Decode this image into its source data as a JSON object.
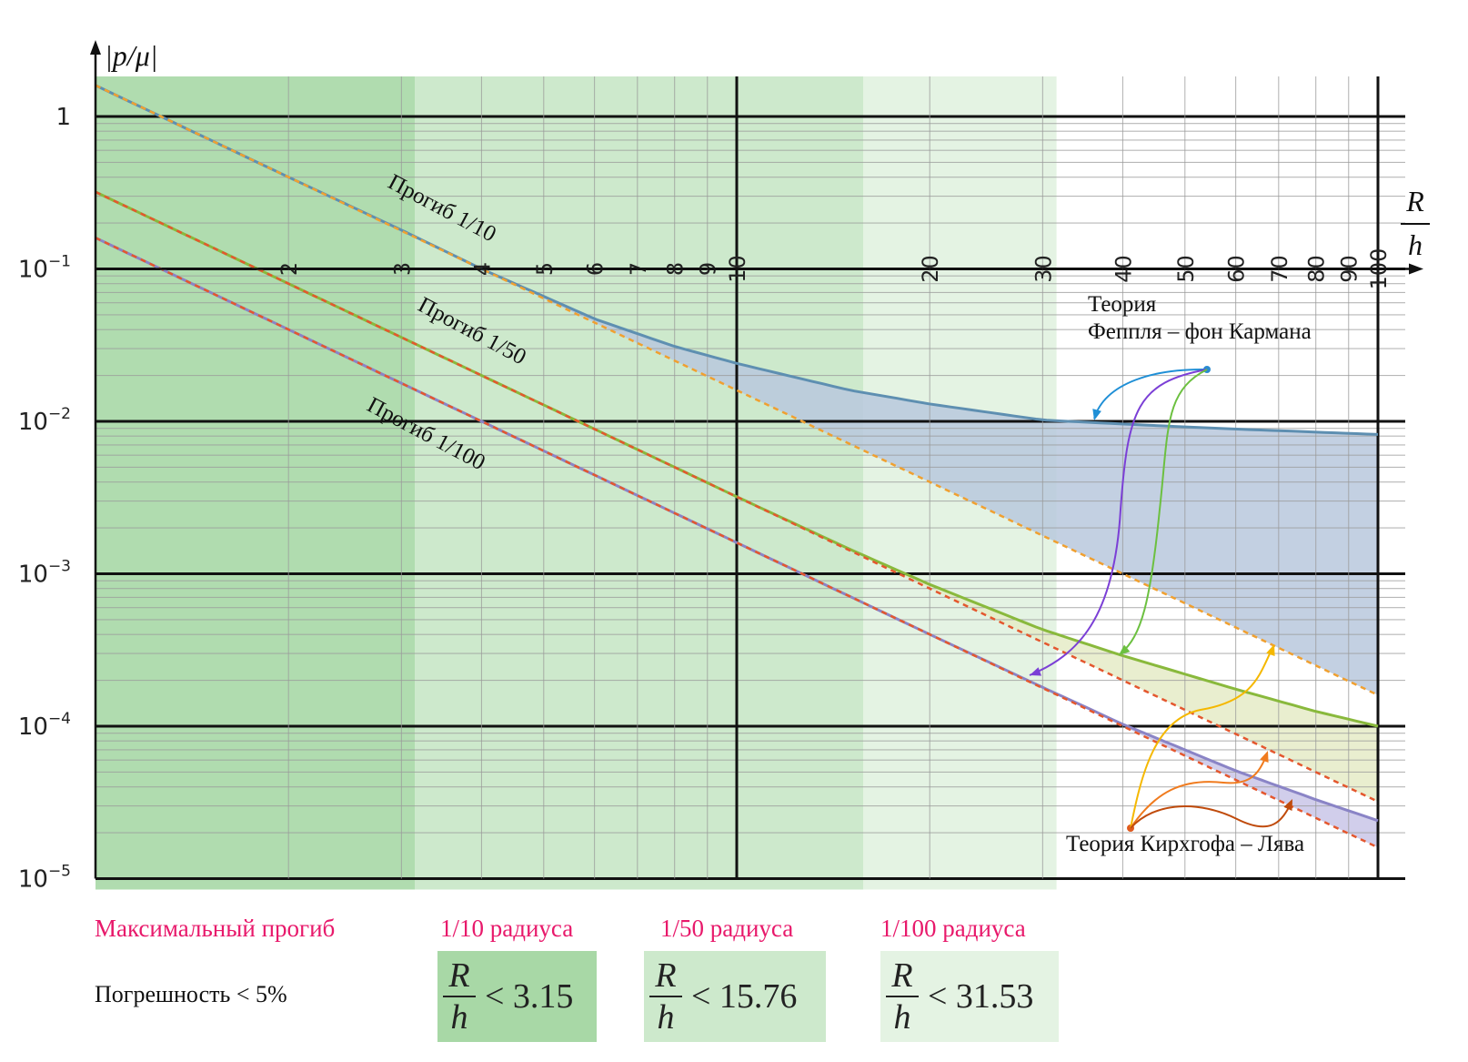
{
  "colors": {
    "band1": "#b0dcaf",
    "band2": "#cde9cc",
    "band3": "#e4f3e3",
    "foppl_curve": "#5e8fb1",
    "foppl_fill": "#b9c8dd",
    "mid_curve": "#89b93c",
    "mid_fill": "#e5ebc7",
    "low_curve": "#8a84c6",
    "low_fill": "#c9c6e7",
    "dash_orange": "#f0a030",
    "dash_red": "#e4572e",
    "accent_pink": "#e8196b"
  },
  "chart_data": {
    "type": "line",
    "xscale": "log",
    "yscale": "log",
    "xlim": [
      1,
      110
    ],
    "ylim": [
      1e-05,
      1.6
    ],
    "ylabel": "|p/μ|",
    "xlabel_num": "R",
    "xlabel_den": "h",
    "x_ticks": [
      "2",
      "3",
      "4",
      "5",
      "6",
      "7",
      "8",
      "9",
      "10",
      "20",
      "30",
      "40",
      "50",
      "60",
      "70",
      "80",
      "90",
      "100"
    ],
    "y_ticks": [
      {
        "value": 1,
        "base": "1",
        "exp": ""
      },
      {
        "value": 0.1,
        "base": "10",
        "exp": "−1"
      },
      {
        "value": 0.01,
        "base": "10",
        "exp": "−2"
      },
      {
        "value": 0.001,
        "base": "10",
        "exp": "−3"
      },
      {
        "value": 0.0001,
        "base": "10",
        "exp": "−4"
      },
      {
        "value": 1e-05,
        "base": "10",
        "exp": "−5"
      }
    ],
    "bands": [
      {
        "x_from": 1,
        "x_to": 3.15
      },
      {
        "x_from": 3.15,
        "x_to": 15.76
      },
      {
        "x_from": 15.76,
        "x_to": 31.53
      }
    ],
    "series": [
      {
        "key": "deflection_1_10",
        "label": "Прогиб 1/10",
        "x": [
          1,
          2,
          3,
          4,
          5,
          6,
          8,
          10,
          15,
          20,
          30,
          40,
          50,
          60,
          80,
          100
        ],
        "y": [
          1.6,
          0.4,
          0.18,
          0.1,
          0.066,
          0.047,
          0.031,
          0.024,
          0.016,
          0.013,
          0.0102,
          0.0096,
          0.0092,
          0.0089,
          0.0085,
          0.0082
        ]
      },
      {
        "key": "deflection_1_50",
        "label": "Прогиб 1/50",
        "x": [
          1,
          2,
          4,
          6,
          10,
          15,
          20,
          30,
          40,
          60,
          80,
          100
        ],
        "y": [
          0.32,
          0.08,
          0.02,
          0.0089,
          0.0032,
          0.00145,
          0.00085,
          0.00043,
          0.00029,
          0.000175,
          0.000125,
          0.0001
        ]
      },
      {
        "key": "deflection_1_100",
        "label": "Прогиб 1/100",
        "x": [
          1,
          2,
          4,
          10,
          20,
          30,
          40,
          60,
          80,
          100
        ],
        "y": [
          0.16,
          0.04,
          0.01,
          0.0016,
          0.0004,
          0.00018,
          0.000103,
          5.1e-05,
          3.3e-05,
          2.4e-05
        ]
      },
      {
        "key": "kirchhoff_1_10",
        "style": "dashed",
        "x": [
          1,
          100
        ],
        "y": [
          1.6,
          0.00016
        ]
      },
      {
        "key": "kirchhoff_1_50",
        "style": "dashed",
        "x": [
          1,
          100
        ],
        "y": [
          0.32,
          3.2e-05
        ]
      },
      {
        "key": "kirchhoff_1_100",
        "style": "dashed",
        "x": [
          1,
          100
        ],
        "y": [
          0.16,
          1.6e-05
        ]
      }
    ],
    "annotations": {
      "foppl_line1": "Теория",
      "foppl_line2": "Феппля – фон Кармана",
      "kirchhoff": "Теория Кирхгофа – Лява"
    }
  },
  "bottom": {
    "max_deflection_label": "Максимальный прогиб",
    "error_label": "Погрешность < 5%",
    "conditions": [
      {
        "title": "1/10 радиуса",
        "num": "R",
        "den": "h",
        "rel": "< 3.15"
      },
      {
        "title": "1/50 радиуса",
        "num": "R",
        "den": "h",
        "rel": "< 15.76"
      },
      {
        "title": "1/100 радиуса",
        "num": "R",
        "den": "h",
        "rel": "< 31.53"
      }
    ]
  }
}
